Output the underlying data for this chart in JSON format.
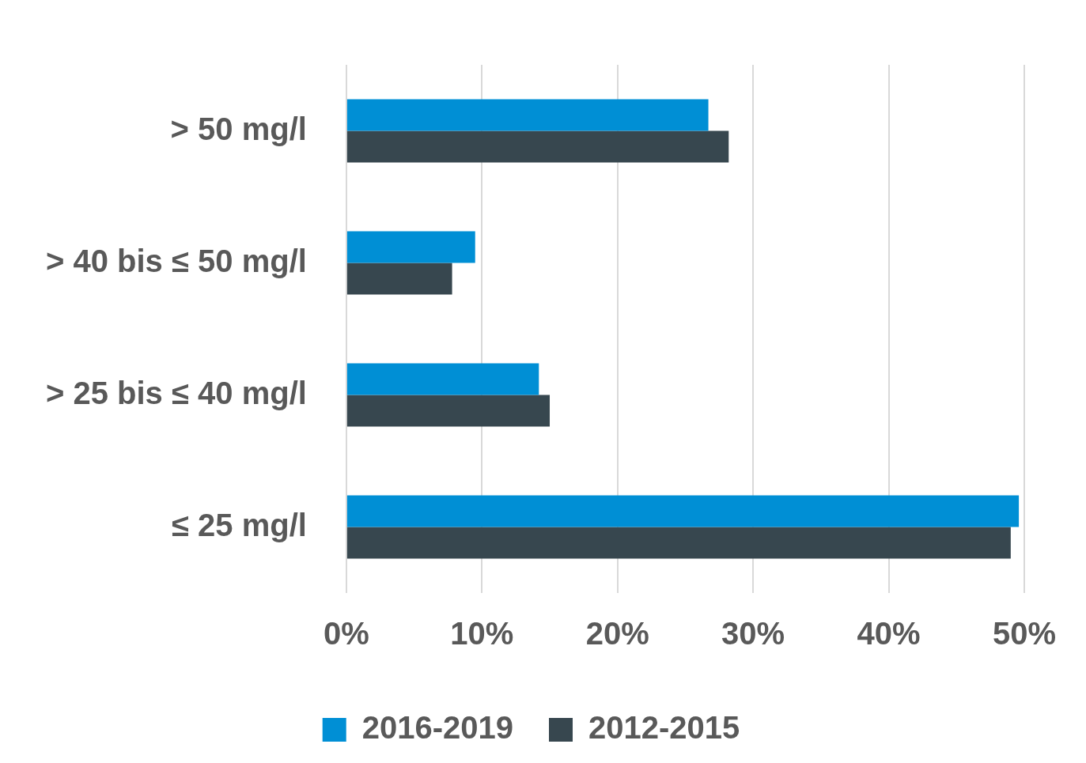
{
  "chart_data": {
    "type": "bar",
    "orientation": "horizontal",
    "categories": [
      "> 50 mg/l",
      "> 40 bis ≤ 50 mg/l",
      "> 25 bis ≤ 40 mg/l",
      "≤ 25 mg/l"
    ],
    "series": [
      {
        "name": "2016-2019",
        "color": "#008fd5",
        "values": [
          26.7,
          9.5,
          14.2,
          49.6
        ]
      },
      {
        "name": "2012-2015",
        "color": "#37474f",
        "values": [
          28.2,
          7.8,
          15.0,
          49.0
        ]
      }
    ],
    "xlim": [
      0,
      50
    ],
    "xticks": [
      {
        "value": 0,
        "label": "0%"
      },
      {
        "value": 10,
        "label": "10%"
      },
      {
        "value": 20,
        "label": "20%"
      },
      {
        "value": 30,
        "label": "30%"
      },
      {
        "value": 40,
        "label": "40%"
      },
      {
        "value": 50,
        "label": "50%"
      }
    ],
    "grid": "x",
    "legend": "bottom"
  }
}
